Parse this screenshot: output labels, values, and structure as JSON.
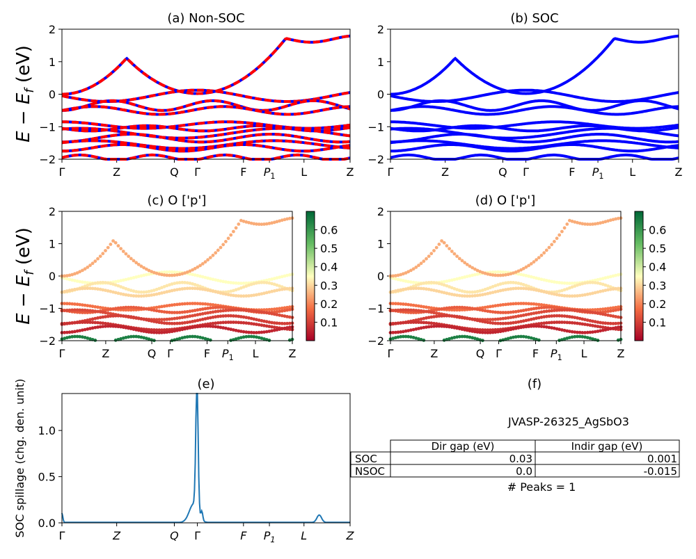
{
  "axis_label_E": "E − E",
  "axis_label_E_sub": "f",
  "axis_label_E_unit": " (eV)",
  "colors": {
    "nsoc": "#ff0000",
    "soc": "#0000ff",
    "spillage": "#1f77b4"
  },
  "kpath": [
    "Γ",
    "Z",
    "Q",
    "Γ",
    "F",
    "P1",
    "L",
    "Z"
  ],
  "chart_data": [
    {
      "id": "a",
      "type": "line",
      "title": "(a) Non-SOC",
      "ylabel": "E − Ef (eV)",
      "ylim": [
        -2,
        2
      ],
      "yticks": [
        "−2",
        "−1",
        "0",
        "1",
        "2"
      ],
      "xticks": [
        "Γ",
        "Z",
        "Q",
        "Γ",
        "F",
        "P1",
        "L",
        "Z"
      ],
      "series": [
        {
          "name": "",
          "color": "#ff0000",
          "style": "dashed-over-blue",
          "values": [
            -1.85,
            -1.6,
            -1.3,
            -0.4,
            -0.55,
            -0.25,
            -0.05,
            0,
            0.6,
            -0.15,
            -0.35,
            1.65,
            1.75
          ]
        }
      ]
    },
    {
      "id": "b",
      "type": "line",
      "title": "(b) SOC",
      "ylim": [
        -2,
        2
      ],
      "yticks": [
        "−2",
        "−1",
        "0",
        "1",
        "2"
      ],
      "xticks": [
        "Γ",
        "Z",
        "Q",
        "Γ",
        "F",
        "P1",
        "L",
        "Z"
      ],
      "series": [
        {
          "name": "",
          "color": "#0000ff",
          "values": [
            -1.85,
            -1.6,
            -1.3,
            -0.4,
            -0.55,
            -0.25,
            -0.05,
            0,
            0.6,
            -0.15,
            -0.35,
            1.65,
            1.75
          ]
        }
      ]
    },
    {
      "id": "c",
      "type": "scatter",
      "title": "(c)  O ['p']",
      "ylabel": "E − Ef (eV)",
      "ylim": [
        -2,
        2
      ],
      "yticks": [
        "−2",
        "−1",
        "0",
        "1",
        "2"
      ],
      "xticks": [
        "Γ",
        "Z",
        "Q",
        "Γ",
        "F",
        "P1",
        "L",
        "Z"
      ],
      "colorbar": {
        "cmap": "RdYlGn",
        "ticks": [
          "0.1",
          "0.2",
          "0.3",
          "0.4",
          "0.5",
          "0.6"
        ],
        "range": [
          0.0,
          0.7
        ]
      }
    },
    {
      "id": "d",
      "type": "scatter",
      "title": "(d) O ['p']",
      "ylim": [
        -2,
        2
      ],
      "yticks": [
        "−2",
        "−1",
        "0",
        "1",
        "2"
      ],
      "xticks": [
        "Γ",
        "Z",
        "Q",
        "Γ",
        "F",
        "P1",
        "L",
        "Z"
      ],
      "colorbar": {
        "cmap": "RdYlGn",
        "ticks": [
          "0.1",
          "0.2",
          "0.3",
          "0.4",
          "0.5",
          "0.6"
        ],
        "range": [
          0.0,
          0.7
        ]
      }
    },
    {
      "id": "e",
      "type": "line",
      "title": "(e)",
      "ylabel": "SOC spillage (chg. den. unit)",
      "ylim": [
        0,
        1.4
      ],
      "yticks": [
        "0.0",
        "0.5",
        "1.0"
      ],
      "xticks": [
        "Γ",
        "Z",
        "Q",
        "Γ",
        "F",
        "P1",
        "L",
        "Z"
      ],
      "peaks": [
        {
          "k": 0.0,
          "value": 0.1
        },
        {
          "k": 2.93,
          "value": 1.4
        },
        {
          "k": 3.05,
          "value": 0.09
        },
        {
          "k": 5.45,
          "value": 0.08
        }
      ]
    },
    {
      "id": "f",
      "type": "table",
      "title": "(f)",
      "subtitle": "JVASP-26325_AgSbO3",
      "columns": [
        "",
        "Dir gap (eV)",
        "Indir gap (eV)"
      ],
      "rows": [
        [
          "SOC",
          "0.03",
          "0.001"
        ],
        [
          "NSOC",
          "0.0",
          "-0.015"
        ]
      ],
      "footer": "# Peaks = 1"
    }
  ]
}
